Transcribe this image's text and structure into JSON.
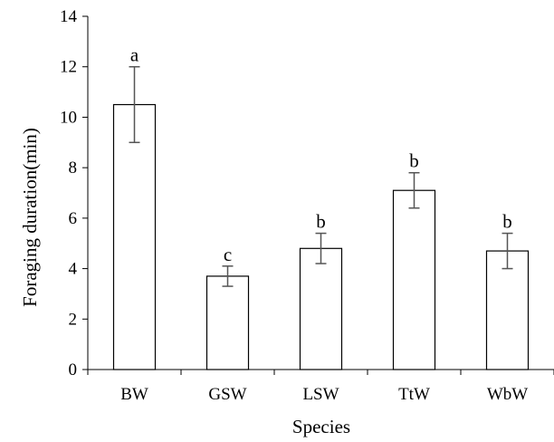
{
  "chart_data": {
    "type": "bar",
    "title": "",
    "xlabel": "Species",
    "ylabel": "Foraging duration(min)",
    "categories": [
      "BW",
      "GSW",
      "LSW",
      "TtW",
      "WbW"
    ],
    "values": [
      10.5,
      3.7,
      4.8,
      7.1,
      4.7
    ],
    "error_low": [
      9.0,
      3.3,
      4.2,
      6.4,
      4.0
    ],
    "error_high": [
      12.0,
      4.1,
      5.4,
      7.8,
      5.4
    ],
    "significance_labels": [
      "a",
      "c",
      "b",
      "b",
      "b"
    ],
    "ylim": [
      0,
      14
    ],
    "yticks": [
      0,
      2,
      4,
      6,
      8,
      10,
      12,
      14
    ],
    "ytick_labels": [
      "0",
      "2",
      "4",
      "6",
      "8",
      "10",
      "12",
      "14"
    ],
    "grid": false,
    "legend": "none",
    "colors": {
      "bar_fill": "#ffffff",
      "bar_stroke": "#000000",
      "error_bar": "#555555",
      "axis": "#000000"
    }
  }
}
